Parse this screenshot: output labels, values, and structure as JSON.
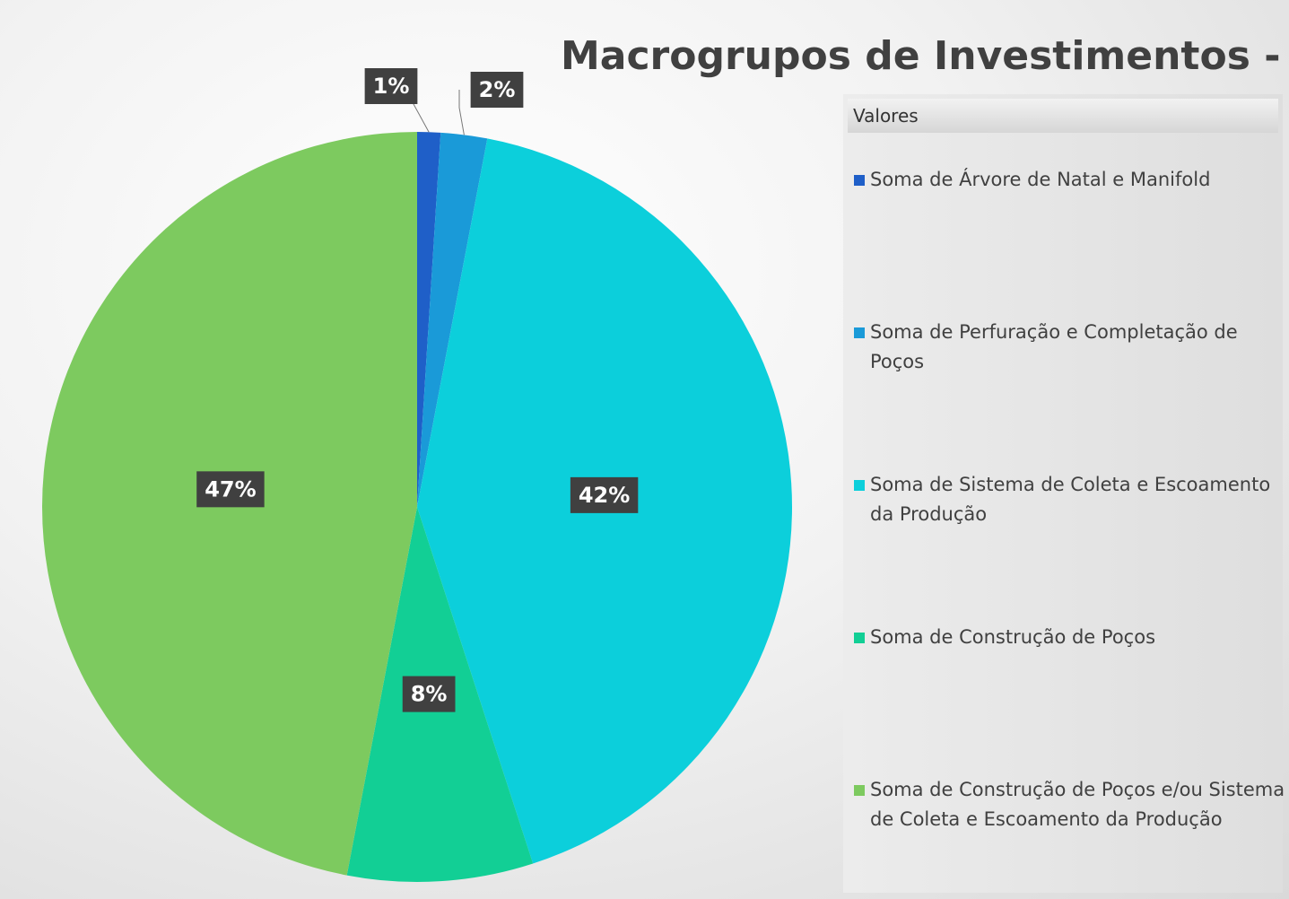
{
  "chart_data": {
    "type": "pie",
    "title": "Macrogrupos de Investimentos - TAC",
    "legend_title": "Valores",
    "categories": [
      "Soma de Árvore de Natal e Manifold",
      "Soma de Perfuração e Completação de Poços",
      "Soma de Sistema de Coleta e Escoamento da Produção",
      "Soma de Construção de Poços",
      "Soma de Construção de Poços e/ou Sistema de Coleta e Escoamento da Produção"
    ],
    "values": [
      1,
      2,
      42,
      8,
      47
    ],
    "value_labels": [
      "1%",
      "2%",
      "42%",
      "8%",
      "47%"
    ],
    "colors": [
      "#1f5fc8",
      "#1a9ad8",
      "#0ccfdb",
      "#12cf95",
      "#7dca5f"
    ],
    "legend": "right"
  }
}
